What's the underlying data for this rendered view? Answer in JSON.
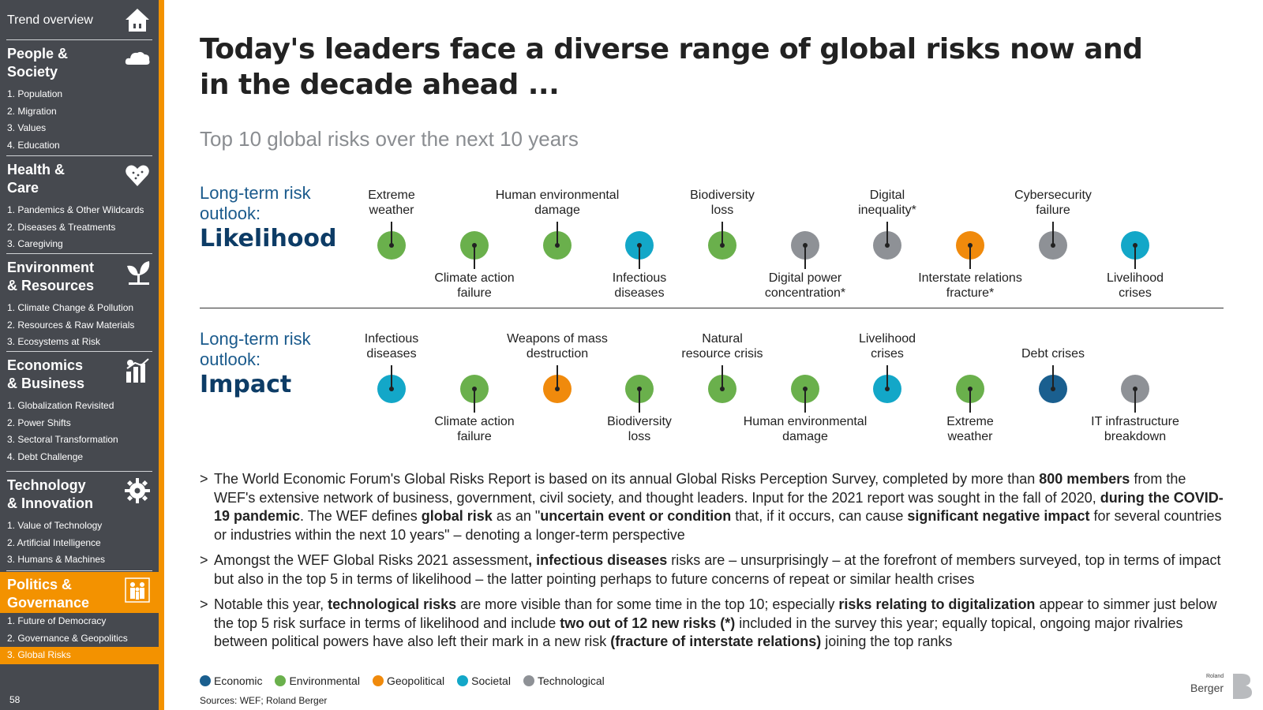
{
  "sidebar": {
    "top_label": "Trend overview",
    "sections": [
      {
        "title": "People &\nSociety",
        "items": [
          "1. Population",
          "2. Migration",
          "3. Values",
          "4. Education"
        ]
      },
      {
        "title": "Health &\nCare",
        "items": [
          "1. Pandemics & Other Wildcards",
          "2. Diseases & Treatments",
          "3. Caregiving"
        ]
      },
      {
        "title": "Environment\n& Resources",
        "items": [
          "1. Climate Change & Pollution",
          "2. Resources & Raw Materials",
          "3. Ecosystems at Risk"
        ]
      },
      {
        "title": "Economics\n& Business",
        "items": [
          "1. Globalization Revisited",
          "2. Power Shifts",
          "3. Sectoral Transformation",
          "4. Debt Challenge"
        ]
      },
      {
        "title": "Technology\n& Innovation",
        "items": [
          "1. Value of Technology",
          "2. Artificial Intelligence",
          "3. Humans & Machines"
        ]
      },
      {
        "title": "Politics &\nGovernance",
        "items": [
          "1. Future of Democracy",
          "2. Governance & Geopolitics",
          "3. Global Risks"
        ]
      }
    ],
    "page_number": "58"
  },
  "main": {
    "title": "Today's leaders face a diverse range of global risks now and in the decade ahead ...",
    "subtitle": "Top 10 global risks over the next 10 years",
    "likelihood": {
      "line1": "Long-term risk",
      "line2": "outlook:",
      "heading": "Likelihood",
      "risks": [
        {
          "label": "Extreme\nweather",
          "category": "Environmental"
        },
        {
          "label": "Climate action\nfailure",
          "category": "Environmental"
        },
        {
          "label": "Human environmental\ndamage",
          "category": "Environmental"
        },
        {
          "label": "Infectious\ndiseases",
          "category": "Societal"
        },
        {
          "label": "Biodiversity\nloss",
          "category": "Environmental"
        },
        {
          "label": "Digital power\nconcentration*",
          "category": "Technological"
        },
        {
          "label": "Digital\ninequality*",
          "category": "Technological"
        },
        {
          "label": "Interstate relations\nfracture*",
          "category": "Geopolitical"
        },
        {
          "label": "Cybersecurity\nfailure",
          "category": "Technological"
        },
        {
          "label": "Livelihood\ncrises",
          "category": "Societal"
        }
      ]
    },
    "impact": {
      "line1": "Long-term risk",
      "line2": "outlook:",
      "heading": "Impact",
      "risks": [
        {
          "label": "Infectious\ndiseases",
          "category": "Societal"
        },
        {
          "label": "Climate action\nfailure",
          "category": "Environmental"
        },
        {
          "label": "Weapons of mass\ndestruction",
          "category": "Geopolitical"
        },
        {
          "label": "Biodiversity\nloss",
          "category": "Environmental"
        },
        {
          "label": "Natural\nresource crisis",
          "category": "Environmental"
        },
        {
          "label": "Human environmental\ndamage",
          "category": "Environmental"
        },
        {
          "label": "Livelihood\ncrises",
          "category": "Societal"
        },
        {
          "label": "Extreme\nweather",
          "category": "Environmental"
        },
        {
          "label": "Debt crises",
          "category": "Economic"
        },
        {
          "label": "IT infrastructure\nbreakdown",
          "category": "Technological"
        }
      ]
    },
    "bullets": [
      [
        {
          "t": "The World Economic Forum's Global Risks Report is based on its annual Global Risks Perception Survey, completed by more than "
        },
        {
          "t": "800 members",
          "b": true
        },
        {
          "t": " from the WEF's extensive network of business, government, civil society, and thought leaders. Input for the 2021 report was sought in the fall of 2020, "
        },
        {
          "t": "during the COVID-19 pandemic",
          "b": true
        },
        {
          "t": ". The WEF defines "
        },
        {
          "t": "global risk",
          "b": true
        },
        {
          "t": " as an \""
        },
        {
          "t": "uncertain event or condition",
          "b": true
        },
        {
          "t": " that, if it occurs, can cause "
        },
        {
          "t": "significant negative impact",
          "b": true
        },
        {
          "t": " for several countries or industries within the next 10 years\" – denoting a longer-term perspective"
        }
      ],
      [
        {
          "t": "Amongst the WEF Global Risks 2021 assessment"
        },
        {
          "t": ", infectious diseases",
          "b": true
        },
        {
          "t": " risks are – unsurprisingly – at the forefront of members surveyed, top in terms of impact but also in the top 5 in terms of likelihood – the latter pointing perhaps to future concerns of repeat or similar health crises"
        }
      ],
      [
        {
          "t": "Notable this year, "
        },
        {
          "t": "technological risks",
          "b": true
        },
        {
          "t": " are more visible than for some time in the top 10; especially "
        },
        {
          "t": "risks relating to digitalization",
          "b": true
        },
        {
          "t": " appear to simmer just below the top 5 risk surface in terms of likelihood and include "
        },
        {
          "t": "two out of 12 new risks (*)",
          "b": true
        },
        {
          "t": " included in the survey this year; equally topical, ongoing major rivalries between political powers have also left their mark in a new risk "
        },
        {
          "t": "(fracture of interstate relations)",
          "b": true
        },
        {
          "t": " joining the top ranks"
        }
      ]
    ],
    "legend": [
      {
        "label": "Economic",
        "color": "#1a5f8f"
      },
      {
        "label": "Environmental",
        "color": "#6ab04c"
      },
      {
        "label": "Geopolitical",
        "color": "#f08a0c"
      },
      {
        "label": "Societal",
        "color": "#13a7c8"
      },
      {
        "label": "Technological",
        "color": "#8e9196"
      }
    ],
    "sources": "Sources: WEF; Roland Berger",
    "logo": {
      "small": "Roland",
      "big": "Berger"
    }
  }
}
